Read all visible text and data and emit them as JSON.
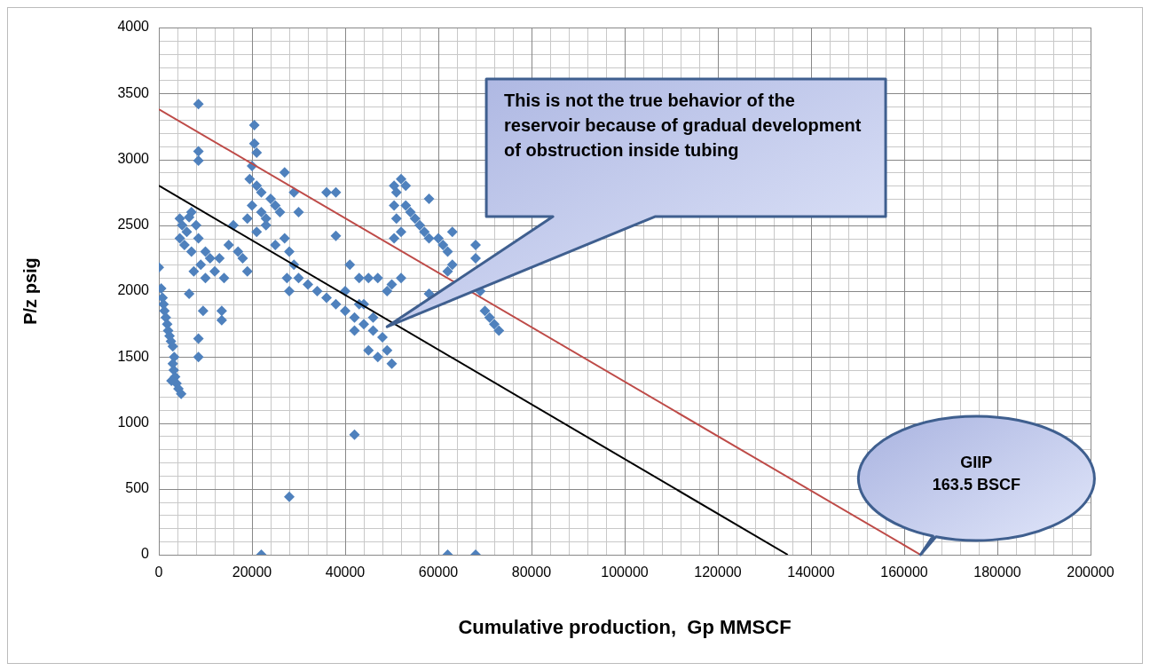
{
  "chart_data": {
    "type": "scatter",
    "xlabel": "Cumulative production,  Gp MMSCF",
    "ylabel": "P/z psig",
    "xlim": [
      0,
      200000
    ],
    "xticks": [
      0,
      20000,
      40000,
      60000,
      80000,
      100000,
      120000,
      140000,
      160000,
      180000,
      200000
    ],
    "ylim": [
      0,
      4000
    ],
    "yticks": [
      0,
      500,
      1000,
      1500,
      2000,
      2500,
      3000,
      3500,
      4000
    ],
    "grid": true,
    "legend": false,
    "marker": "diamond",
    "series": [
      {
        "color": "#4f81bd",
        "x": [
          0,
          500,
          800,
          1000,
          1200,
          1500,
          1800,
          2000,
          2300,
          2600,
          3000,
          3000,
          3200,
          3500,
          3800,
          4200,
          4800,
          2700,
          3300,
          4500,
          5000,
          4500,
          5500,
          6000,
          6500,
          7000,
          7500,
          8000,
          8500,
          9000,
          10000,
          10000,
          11000,
          12000,
          13000,
          14000,
          15000,
          16000,
          17000,
          18000,
          19000,
          13500,
          13500,
          9500,
          6500,
          8500,
          8500,
          7000,
          8500,
          8500,
          8500,
          20500,
          20500,
          21000,
          20000,
          19500,
          21000,
          22000,
          20000,
          22000,
          23000,
          24000,
          25000,
          26000,
          27000,
          21000,
          27000,
          28000,
          27500,
          28000,
          29000,
          30000,
          29000,
          25000,
          23000,
          19000,
          30000,
          32000,
          34000,
          36000,
          38000,
          40000,
          42000,
          44000,
          46000,
          48000,
          49000,
          50000,
          47000,
          45000,
          42000,
          36000,
          38000,
          38000,
          40000,
          41000,
          43000,
          45000,
          47000,
          43000,
          49000,
          50000,
          46000,
          44000,
          50500,
          51000,
          52000,
          53000,
          50500,
          51000,
          52000,
          50500,
          53000,
          54000,
          55000,
          56000,
          58000,
          57000,
          58000,
          60000,
          61000,
          62000,
          63000,
          69000,
          70000,
          71000,
          72000,
          73000,
          68000,
          68000,
          63000,
          52000,
          58000,
          62000,
          42000,
          28000,
          22000,
          62000,
          68000
        ],
        "values": [
          2180,
          2020,
          1950,
          1900,
          1850,
          1800,
          1750,
          1700,
          1660,
          1620,
          1580,
          1450,
          1400,
          1350,
          1300,
          1260,
          1220,
          1320,
          1500,
          2550,
          2500,
          2400,
          2350,
          2450,
          2560,
          2300,
          2150,
          2500,
          2400,
          2200,
          2300,
          2100,
          2250,
          2150,
          2250,
          2100,
          2350,
          2500,
          2300,
          2250,
          2150,
          1850,
          1780,
          1850,
          1980,
          1640,
          1500,
          2600,
          3420,
          3060,
          2990,
          3260,
          3120,
          3050,
          2950,
          2850,
          2800,
          2750,
          2650,
          2600,
          2550,
          2700,
          2650,
          2600,
          2900,
          2450,
          2400,
          2300,
          2100,
          2000,
          2200,
          2600,
          2750,
          2350,
          2500,
          2550,
          2100,
          2050,
          2000,
          1950,
          1900,
          1850,
          1800,
          1750,
          1700,
          1650,
          1550,
          1450,
          1500,
          1550,
          1700,
          2750,
          2750,
          2420,
          2000,
          2200,
          2100,
          2100,
          2100,
          1900,
          2000,
          2050,
          1800,
          1900,
          2800,
          2750,
          2850,
          2800,
          2650,
          2550,
          2450,
          2400,
          2650,
          2600,
          2550,
          2500,
          2700,
          2450,
          2400,
          2400,
          2350,
          2300,
          2200,
          2000,
          1850,
          1800,
          1750,
          1700,
          2350,
          2250,
          2450,
          2100,
          1980,
          2150,
          910,
          440,
          0,
          0,
          0
        ]
      },
      {
        "type": "line",
        "marker": "none",
        "color": "#be4b48",
        "x": [
          0,
          163500
        ],
        "values": [
          3380,
          0
        ]
      },
      {
        "type": "line",
        "marker": "none",
        "color": "#000000",
        "x": [
          0,
          135000
        ],
        "values": [
          2800,
          0
        ]
      }
    ],
    "annotations": [
      "This is not the true behavior of the reservoir  because of gradual development of obstruction inside tubing",
      "GIIP\n163.5 BSCF"
    ]
  }
}
